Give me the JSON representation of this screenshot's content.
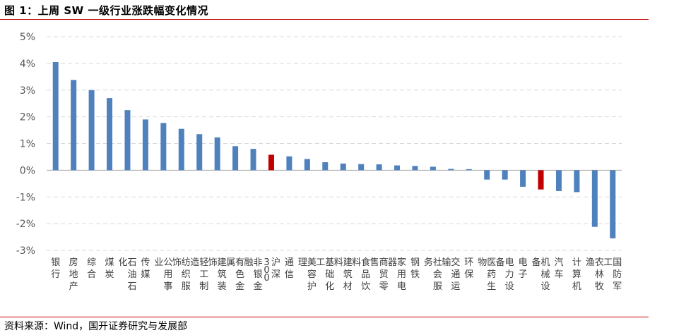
{
  "figure": {
    "title": "图 1：上周 SW 一级行业涨跌幅变化情况",
    "source": "资料来源：Wind，国开证券研究与发展部"
  },
  "chart_data": {
    "type": "bar",
    "categories": [
      "银行",
      "房地产",
      "综合",
      "煤炭",
      "石油石化",
      "传媒",
      "公用事业",
      "纺织服饰",
      "轻工制造",
      "建筑装饰",
      "有色金属",
      "非银金融",
      "沪深300",
      "通信",
      "美容护理",
      "基础化工",
      "建筑材料",
      "食品饮料",
      "商贸零售",
      "家用电器",
      "钢铁",
      "社会服务",
      "交通运输",
      "环保",
      "医药生物",
      "电力设备",
      "电子",
      "机械设备",
      "汽车",
      "计算机",
      "农林牧渔",
      "国防军工"
    ],
    "values": [
      4.05,
      3.38,
      3.0,
      2.7,
      2.25,
      1.9,
      1.77,
      1.55,
      1.35,
      1.23,
      0.9,
      0.8,
      0.58,
      0.52,
      0.42,
      0.3,
      0.25,
      0.23,
      0.22,
      0.18,
      0.16,
      0.13,
      0.05,
      0.04,
      -0.35,
      -0.35,
      -0.62,
      -0.72,
      -0.78,
      -0.82,
      -2.12,
      -2.55
    ],
    "highlight": [
      "沪深300",
      "机械设备"
    ],
    "ylim": [
      -3,
      5
    ],
    "yticks": [
      -3,
      -2,
      -1,
      0,
      1,
      2,
      3,
      4,
      5
    ],
    "ytick_labels": [
      "-3%",
      "-2%",
      "-1%",
      "0%",
      "1%",
      "2%",
      "3%",
      "4%",
      "5%"
    ],
    "grid": true,
    "colors": {
      "bar": "#4f81bd",
      "highlight": "#c00000",
      "grid": "#d9d9d9",
      "axis": "#a6a6a6",
      "rule": "#c00000"
    }
  }
}
